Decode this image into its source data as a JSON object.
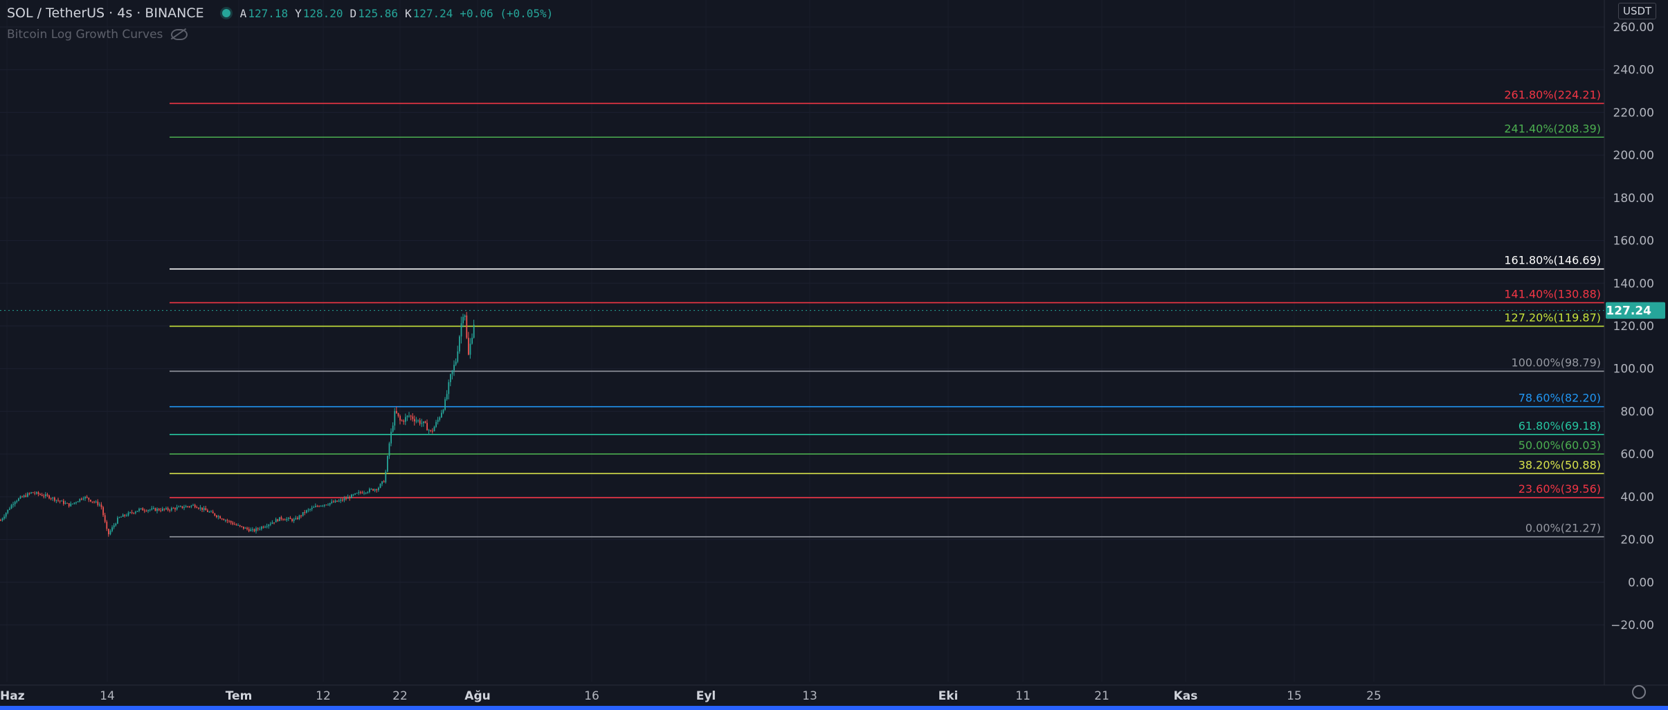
{
  "header": {
    "symbol": "SOL / TetherUS · 4s · BINANCE",
    "ohlc": [
      {
        "k": "A",
        "v": "127.18"
      },
      {
        "k": "Y",
        "v": "128.20"
      },
      {
        "k": "D",
        "v": "125.86"
      },
      {
        "k": "K",
        "v": "127.24"
      },
      {
        "k": "",
        "v": "+0.06 (+0.05%)"
      }
    ],
    "indicator": "Bitcoin Log Growth Curves",
    "currency": "USDT"
  },
  "colors": {
    "background": "#131722",
    "up": "#26a69a",
    "down": "#ef5350",
    "price_tag": "#26a69a"
  },
  "chart_data": {
    "type": "candlestick",
    "y_ticks": [
      "260.00",
      "240.00",
      "220.00",
      "200.00",
      "180.00",
      "160.00",
      "140.00",
      "120.00",
      "100.00",
      "80.00",
      "60.00",
      "40.00",
      "20.00",
      "0.00",
      "−20.00"
    ],
    "ylim": [
      -25,
      265
    ],
    "x_ticks": [
      {
        "label": "Haz",
        "bold": true
      },
      {
        "label": "14",
        "bold": false
      },
      {
        "label": "Tem",
        "bold": true
      },
      {
        "label": "12",
        "bold": false
      },
      {
        "label": "22",
        "bold": false
      },
      {
        "label": "Ağu",
        "bold": true
      },
      {
        "label": "16",
        "bold": false
      },
      {
        "label": "Eyl",
        "bold": true
      },
      {
        "label": "13",
        "bold": false
      },
      {
        "label": "Eki",
        "bold": true
      },
      {
        "label": "11",
        "bold": false
      },
      {
        "label": "21",
        "bold": false
      },
      {
        "label": "Kas",
        "bold": true
      },
      {
        "label": "15",
        "bold": false
      },
      {
        "label": "25",
        "bold": false
      }
    ],
    "last_price": "127.24",
    "price_path": [
      [
        0,
        29
      ],
      [
        20,
        38
      ],
      [
        45,
        42
      ],
      [
        70,
        40
      ],
      [
        100,
        36
      ],
      [
        120,
        40
      ],
      [
        145,
        36
      ],
      [
        155,
        22
      ],
      [
        170,
        30
      ],
      [
        200,
        34
      ],
      [
        240,
        34
      ],
      [
        280,
        36
      ],
      [
        320,
        30
      ],
      [
        345,
        26
      ],
      [
        365,
        24
      ],
      [
        385,
        27
      ],
      [
        405,
        30
      ],
      [
        425,
        29
      ],
      [
        440,
        33
      ],
      [
        460,
        36
      ],
      [
        490,
        38
      ],
      [
        520,
        42
      ],
      [
        545,
        44
      ],
      [
        555,
        48
      ],
      [
        562,
        66
      ],
      [
        570,
        80
      ],
      [
        578,
        75
      ],
      [
        590,
        78
      ],
      [
        600,
        76
      ],
      [
        612,
        74
      ],
      [
        622,
        70
      ],
      [
        632,
        76
      ],
      [
        642,
        84
      ],
      [
        650,
        96
      ],
      [
        658,
        104
      ],
      [
        664,
        118
      ],
      [
        670,
        130
      ],
      [
        673,
        115
      ],
      [
        676,
        106
      ],
      [
        680,
        114
      ],
      [
        684,
        122
      ],
      [
        686,
        127.24
      ]
    ],
    "fib_levels": [
      {
        "label": "261.80%(224.21)",
        "value": 224.21,
        "color": "#f23645"
      },
      {
        "label": "241.40%(208.39)",
        "value": 208.39,
        "color": "#4caf50"
      },
      {
        "label": "161.80%(146.69)",
        "value": 146.69,
        "color": "#ffffff"
      },
      {
        "label": "141.40%(130.88)",
        "value": 130.88,
        "color": "#f23645"
      },
      {
        "label": "127.20%(119.87)",
        "value": 119.87,
        "color": "#c6e23a"
      },
      {
        "label": "100.00%(98.79)",
        "value": 98.79,
        "color": "#9598a1"
      },
      {
        "label": "78.60%(82.20)",
        "value": 82.2,
        "color": "#2196f3"
      },
      {
        "label": "61.80%(69.18)",
        "value": 69.18,
        "color": "#26c6a0"
      },
      {
        "label": "50.00%(60.03)",
        "value": 60.03,
        "color": "#4caf50"
      },
      {
        "label": "38.20%(50.88)",
        "value": 50.88,
        "color": "#d8e34b"
      },
      {
        "label": "23.60%(39.56)",
        "value": 39.56,
        "color": "#f23645"
      },
      {
        "label": "0.00%(21.27)",
        "value": 21.27,
        "color": "#9598a1"
      }
    ]
  }
}
